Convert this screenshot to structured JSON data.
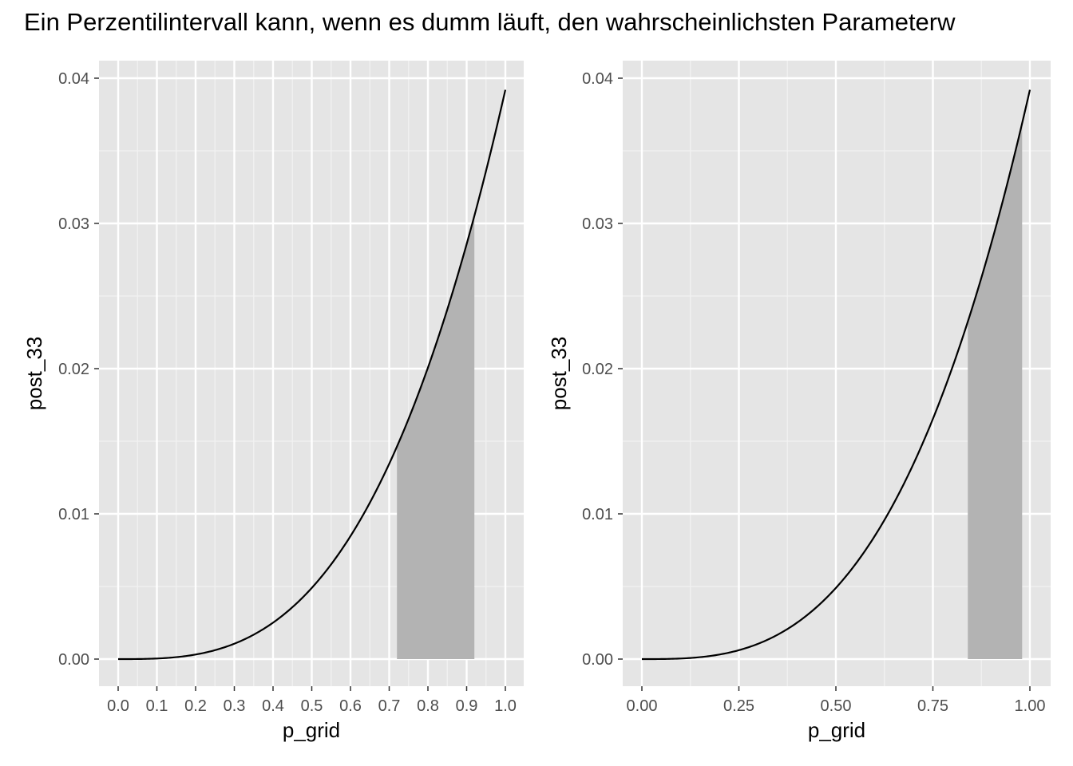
{
  "title": "Ein Perzentilintervall kann, wenn es dumm läuft, den wahrscheinlichsten Parameterw",
  "chart_data": [
    {
      "type": "area",
      "xlabel": "p_grid",
      "ylabel": "post_33",
      "xlim": [
        0,
        1
      ],
      "ylim": [
        0,
        0.04
      ],
      "x_ticks": [
        0.0,
        0.1,
        0.2,
        0.3,
        0.4,
        0.5,
        0.6,
        0.7,
        0.8,
        0.9,
        1.0
      ],
      "x_tick_labels": [
        "0.0",
        "0.1",
        "0.2",
        "0.3",
        "0.4",
        "0.5",
        "0.6",
        "0.7",
        "0.8",
        "0.9",
        "1.0"
      ],
      "x_minor": [
        0.05,
        0.15,
        0.25,
        0.35,
        0.45,
        0.55,
        0.65,
        0.75,
        0.85,
        0.95
      ],
      "y_ticks": [
        0.0,
        0.01,
        0.02,
        0.03,
        0.04
      ],
      "y_tick_labels": [
        "0.00",
        "0.01",
        "0.02",
        "0.03",
        "0.04"
      ],
      "curve": {
        "x": [
          0,
          0.1,
          0.2,
          0.3,
          0.4,
          0.5,
          0.6,
          0.7,
          0.8,
          0.9,
          1.0
        ],
        "y": [
          0,
          4e-05,
          0.00031,
          0.00106,
          0.00251,
          0.0049,
          0.0085,
          0.0134,
          0.0201,
          0.0286,
          0.0392
        ]
      },
      "shaded_interval": [
        0.72,
        0.92
      ],
      "colors": {
        "panel": "#e5e5e5",
        "shade": "#b3b3b3",
        "line": "#000000"
      }
    },
    {
      "type": "area",
      "xlabel": "p_grid",
      "ylabel": "post_33",
      "xlim": [
        0,
        1
      ],
      "ylim": [
        0,
        0.04
      ],
      "x_ticks": [
        0.0,
        0.25,
        0.5,
        0.75,
        1.0
      ],
      "x_tick_labels": [
        "0.00",
        "0.25",
        "0.50",
        "0.75",
        "1.00"
      ],
      "x_minor": [
        0.125,
        0.375,
        0.625,
        0.875
      ],
      "y_ticks": [
        0.0,
        0.01,
        0.02,
        0.03,
        0.04
      ],
      "y_tick_labels": [
        "0.00",
        "0.01",
        "0.02",
        "0.03",
        "0.04"
      ],
      "curve": {
        "x": [
          0,
          0.1,
          0.2,
          0.3,
          0.4,
          0.5,
          0.6,
          0.7,
          0.8,
          0.9,
          1.0
        ],
        "y": [
          0,
          4e-05,
          0.00031,
          0.00106,
          0.00251,
          0.0049,
          0.0085,
          0.0134,
          0.0201,
          0.0286,
          0.0392
        ]
      },
      "shaded_interval": [
        0.84,
        0.98
      ],
      "colors": {
        "panel": "#e5e5e5",
        "shade": "#b3b3b3",
        "line": "#000000"
      }
    }
  ]
}
